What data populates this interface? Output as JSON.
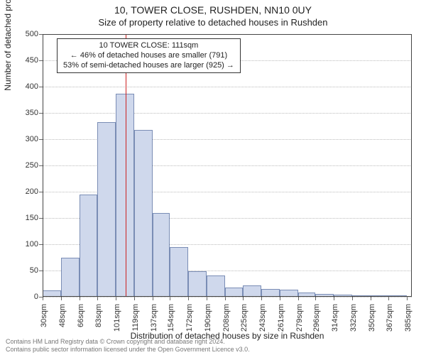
{
  "title_line1": "10, TOWER CLOSE, RUSHDEN, NN10 0UY",
  "title_line2": "Size of property relative to detached houses in Rushden",
  "ylabel": "Number of detached properties",
  "xlabel": "Distribution of detached houses by size in Rushden",
  "footer_line1": "Contains HM Land Registry data © Crown copyright and database right 2024.",
  "footer_line2": "Contains public sector information licensed under the Open Government Licence v3.0.",
  "annotation": {
    "line1": "10 TOWER CLOSE: 111sqm",
    "line2": "← 46% of detached houses are smaller (791)",
    "line3": "53% of semi-detached houses are larger (925) →"
  },
  "chart": {
    "type": "histogram",
    "ylim": [
      0,
      500
    ],
    "ytick_step": 50,
    "xlim": [
      30,
      390
    ],
    "xticks": [
      30,
      48,
      66,
      83,
      101,
      119,
      137,
      154,
      172,
      190,
      208,
      225,
      243,
      261,
      279,
      296,
      314,
      332,
      350,
      367,
      385
    ],
    "xtick_suffix": "sqm",
    "bar_fill": "#cfd8ec",
    "bar_border": "#7a8db5",
    "grid_color": "#bbb",
    "marker_x": 111,
    "marker_color": "#cc2222",
    "bars": [
      {
        "x0": 30,
        "x1": 48,
        "y": 12
      },
      {
        "x0": 48,
        "x1": 66,
        "y": 75
      },
      {
        "x0": 66,
        "x1": 83,
        "y": 195
      },
      {
        "x0": 83,
        "x1": 101,
        "y": 332
      },
      {
        "x0": 101,
        "x1": 119,
        "y": 387
      },
      {
        "x0": 119,
        "x1": 137,
        "y": 318
      },
      {
        "x0": 137,
        "x1": 154,
        "y": 160
      },
      {
        "x0": 154,
        "x1": 172,
        "y": 95
      },
      {
        "x0": 172,
        "x1": 190,
        "y": 48
      },
      {
        "x0": 190,
        "x1": 208,
        "y": 40
      },
      {
        "x0": 208,
        "x1": 225,
        "y": 18
      },
      {
        "x0": 225,
        "x1": 243,
        "y": 22
      },
      {
        "x0": 243,
        "x1": 261,
        "y": 15
      },
      {
        "x0": 261,
        "x1": 279,
        "y": 14
      },
      {
        "x0": 279,
        "x1": 296,
        "y": 8
      },
      {
        "x0": 296,
        "x1": 314,
        "y": 6
      },
      {
        "x0": 314,
        "x1": 332,
        "y": 4
      },
      {
        "x0": 332,
        "x1": 350,
        "y": 2
      },
      {
        "x0": 350,
        "x1": 367,
        "y": 2
      },
      {
        "x0": 367,
        "x1": 385,
        "y": 2
      }
    ]
  }
}
